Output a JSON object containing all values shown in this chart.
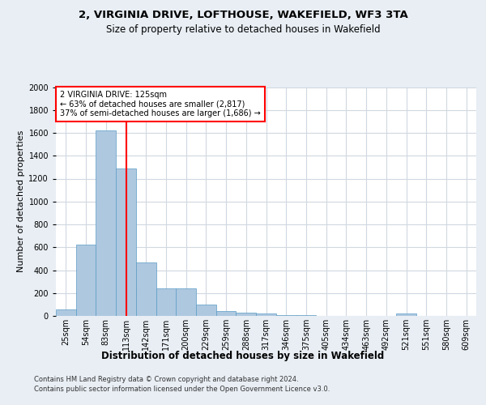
{
  "title_line1": "2, VIRGINIA DRIVE, LOFTHOUSE, WAKEFIELD, WF3 3TA",
  "title_line2": "Size of property relative to detached houses in Wakefield",
  "xlabel": "Distribution of detached houses by size in Wakefield",
  "ylabel": "Number of detached properties",
  "footer_line1": "Contains HM Land Registry data © Crown copyright and database right 2024.",
  "footer_line2": "Contains public sector information licensed under the Open Government Licence v3.0.",
  "bar_labels": [
    "25sqm",
    "54sqm",
    "83sqm",
    "113sqm",
    "142sqm",
    "171sqm",
    "200sqm",
    "229sqm",
    "259sqm",
    "288sqm",
    "317sqm",
    "346sqm",
    "375sqm",
    "405sqm",
    "434sqm",
    "463sqm",
    "492sqm",
    "521sqm",
    "551sqm",
    "580sqm",
    "609sqm"
  ],
  "bar_values": [
    60,
    620,
    1620,
    1290,
    470,
    240,
    240,
    100,
    45,
    30,
    20,
    10,
    10,
    0,
    0,
    0,
    0,
    20,
    0,
    0,
    0
  ],
  "bar_color": "#aec8e0",
  "bar_edge_color": "#5a9cc5",
  "annotation_text": "2 VIRGINIA DRIVE: 125sqm\n← 63% of detached houses are smaller (2,817)\n37% of semi-detached houses are larger (1,686) →",
  "annotation_box_color": "white",
  "annotation_border_color": "red",
  "vline_color": "red",
  "vline_pos": 3.5,
  "ylim": [
    0,
    2000
  ],
  "yticks": [
    0,
    200,
    400,
    600,
    800,
    1000,
    1200,
    1400,
    1600,
    1800,
    2000
  ],
  "background_color": "#e8eef4",
  "plot_background": "white",
  "grid_color": "#d0d8e0",
  "title_fontsize": 9.5,
  "subtitle_fontsize": 8.5,
  "ylabel_fontsize": 8,
  "xlabel_fontsize": 8.5,
  "tick_fontsize": 7,
  "annotation_fontsize": 7,
  "footer_fontsize": 6
}
